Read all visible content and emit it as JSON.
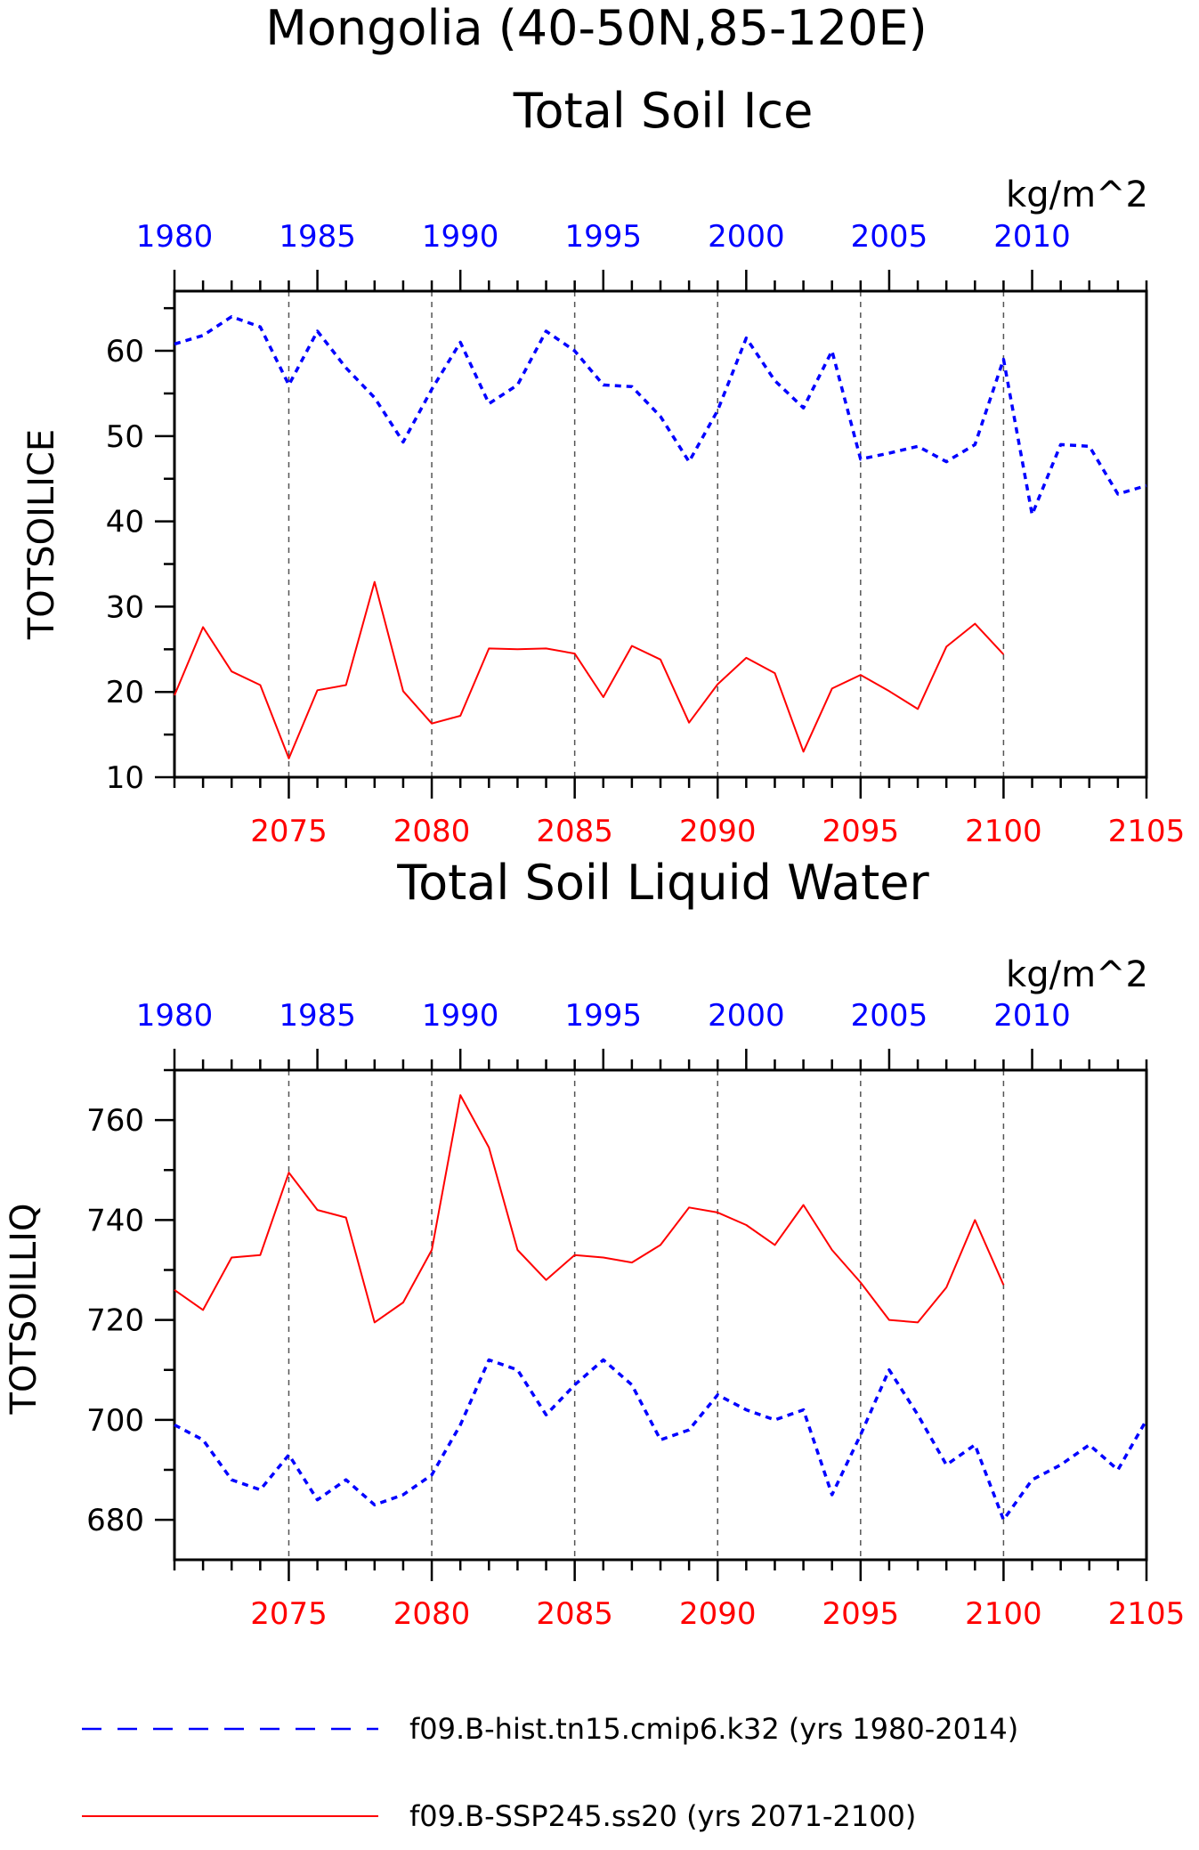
{
  "chart_data": [
    {
      "type": "line",
      "title": "Mongolia (40-50N,85-120E)",
      "subtitle": "Total Soil Ice",
      "ylabel": "TOTSOILICE",
      "units": "kg/m^2",
      "ylim": [
        10,
        67
      ],
      "yticks": [
        10,
        20,
        30,
        40,
        50,
        60
      ],
      "xlim_bottom": [
        2071,
        2105
      ],
      "xticks_bottom": [
        2075,
        2080,
        2085,
        2090,
        2095,
        2100,
        2105
      ],
      "xlim_top": [
        1980,
        2014
      ],
      "xticks_top": [
        1980,
        1985,
        1990,
        1995,
        2000,
        2005,
        2010
      ],
      "grid": "vertical-dashed",
      "series": [
        {
          "name": "f09.B-hist.tn15.cmip6.k32 (yrs 1980-2014)",
          "color": "#0000ff",
          "style": "dashed",
          "axis": "top",
          "x": [
            1980,
            1981,
            1982,
            1983,
            1984,
            1985,
            1986,
            1987,
            1988,
            1989,
            1990,
            1991,
            1992,
            1993,
            1994,
            1995,
            1996,
            1997,
            1998,
            1999,
            2000,
            2001,
            2002,
            2003,
            2004,
            2005,
            2006,
            2007,
            2008,
            2009,
            2010,
            2011,
            2012,
            2013,
            2014
          ],
          "values": [
            60.8,
            61.8,
            64.0,
            62.8,
            56.0,
            62.3,
            58.0,
            54.5,
            49.3,
            55.5,
            61.0,
            53.8,
            56.0,
            62.3,
            60.0,
            56.0,
            55.8,
            52.3,
            47.0,
            53.0,
            61.5,
            56.5,
            53.3,
            60.0,
            47.3,
            48.0,
            48.8,
            47.0,
            49.0,
            59.0,
            40.8,
            49.0,
            48.8,
            43.2,
            44.2
          ]
        },
        {
          "name": "f09.B-SSP245.ss20 (yrs 2071-2100)",
          "color": "#ff0000",
          "style": "solid",
          "axis": "bottom",
          "x": [
            2071,
            2072,
            2073,
            2074,
            2075,
            2076,
            2077,
            2078,
            2079,
            2080,
            2081,
            2082,
            2083,
            2084,
            2085,
            2086,
            2087,
            2088,
            2089,
            2090,
            2091,
            2092,
            2093,
            2094,
            2095,
            2096,
            2097,
            2098,
            2099,
            2100
          ],
          "values": [
            19.6,
            27.6,
            22.4,
            20.8,
            12.2,
            20.2,
            20.8,
            32.9,
            20.1,
            16.3,
            17.2,
            25.1,
            25.0,
            25.1,
            24.5,
            19.4,
            25.4,
            23.8,
            16.4,
            20.9,
            24.0,
            22.2,
            13.0,
            20.4,
            22.0,
            20.1,
            18.0,
            25.3,
            28.0,
            24.4
          ]
        }
      ]
    },
    {
      "type": "line",
      "subtitle": "Total Soil Liquid Water",
      "ylabel": "TOTSOILLIQ",
      "units": "kg/m^2",
      "ylim": [
        672,
        770
      ],
      "yticks": [
        680,
        700,
        720,
        740,
        760
      ],
      "xlim_bottom": [
        2071,
        2105
      ],
      "xticks_bottom": [
        2075,
        2080,
        2085,
        2090,
        2095,
        2100,
        2105
      ],
      "xlim_top": [
        1980,
        2014
      ],
      "xticks_top": [
        1980,
        1985,
        1990,
        1995,
        2000,
        2005,
        2010
      ],
      "grid": "vertical-dashed",
      "series": [
        {
          "name": "f09.B-hist.tn15.cmip6.k32 (yrs 1980-2014)",
          "color": "#0000ff",
          "style": "dashed",
          "axis": "top",
          "x": [
            1980,
            1981,
            1982,
            1983,
            1984,
            1985,
            1986,
            1987,
            1988,
            1989,
            1990,
            1991,
            1992,
            1993,
            1994,
            1995,
            1996,
            1997,
            1998,
            1999,
            2000,
            2001,
            2002,
            2003,
            2004,
            2005,
            2006,
            2007,
            2008,
            2009,
            2010,
            2011,
            2012,
            2013,
            2014
          ],
          "values": [
            699,
            696,
            688,
            686,
            693,
            684,
            688,
            683,
            685,
            689,
            699,
            712,
            710,
            701,
            707,
            712,
            707,
            696,
            698,
            705,
            702,
            700,
            702,
            685,
            697,
            710,
            701,
            691,
            695,
            680,
            688,
            691,
            695,
            690,
            700
          ]
        },
        {
          "name": "f09.B-SSP245.ss20 (yrs 2071-2100)",
          "color": "#ff0000",
          "style": "solid",
          "axis": "bottom",
          "x": [
            2071,
            2072,
            2073,
            2074,
            2075,
            2076,
            2077,
            2078,
            2079,
            2080,
            2081,
            2082,
            2083,
            2084,
            2085,
            2086,
            2087,
            2088,
            2089,
            2090,
            2091,
            2092,
            2093,
            2094,
            2095,
            2096,
            2097,
            2098,
            2099,
            2100
          ],
          "values": [
            726,
            722,
            732.5,
            733,
            749.5,
            742,
            740.5,
            719.5,
            723.5,
            734,
            765,
            754.5,
            734,
            728,
            733,
            732.5,
            731.5,
            735,
            742.5,
            741.5,
            739,
            735,
            743,
            734,
            727.5,
            720,
            719.5,
            726.5,
            740,
            727
          ]
        }
      ]
    }
  ],
  "legend": [
    {
      "label": "f09.B-hist.tn15.cmip6.k32 (yrs 1980-2014)",
      "color": "#0000ff",
      "style": "dashed"
    },
    {
      "label": "f09.B-SSP245.ss20 (yrs 2071-2100)",
      "color": "#ff0000",
      "style": "solid"
    }
  ]
}
